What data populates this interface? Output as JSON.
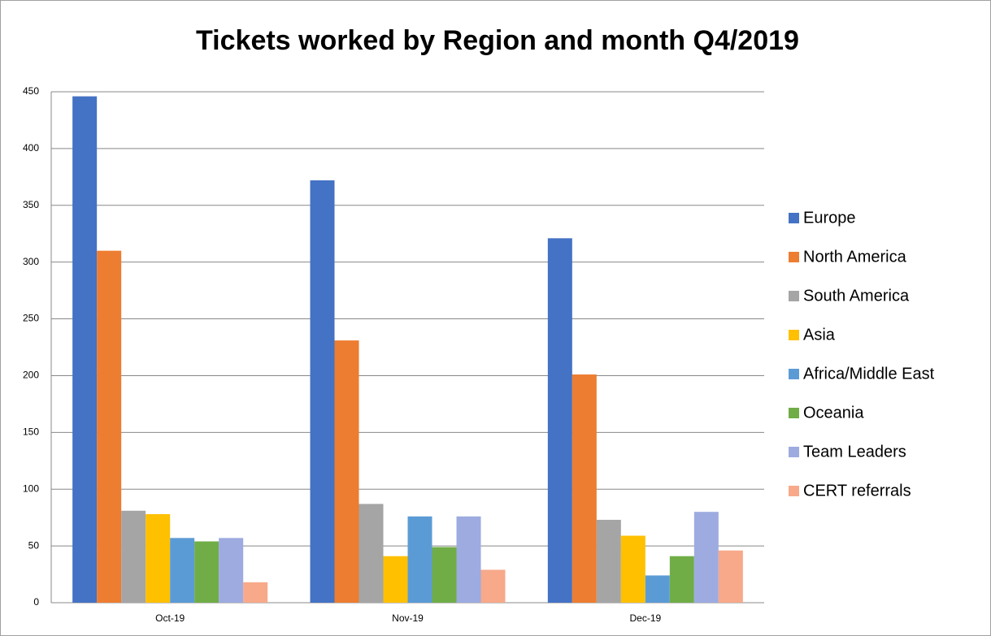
{
  "chart_data": {
    "type": "bar",
    "title": "Tickets worked by Region and month Q4/2019",
    "categories": [
      "Oct-19",
      "Nov-19",
      "Dec-19"
    ],
    "series": [
      {
        "name": "Europe",
        "color": "#4472c4",
        "values": [
          446,
          372,
          321
        ]
      },
      {
        "name": "North America",
        "color": "#ed7d31",
        "values": [
          310,
          231,
          201
        ]
      },
      {
        "name": "South America",
        "color": "#a5a5a5",
        "values": [
          81,
          87,
          73
        ]
      },
      {
        "name": "Asia",
        "color": "#ffc000",
        "values": [
          78,
          41,
          59
        ]
      },
      {
        "name": "Africa/Middle East",
        "color": "#5b9bd5",
        "values": [
          57,
          76,
          24
        ]
      },
      {
        "name": "Oceania",
        "color": "#70ad47",
        "values": [
          54,
          49,
          41
        ]
      },
      {
        "name": "Team Leaders",
        "color": "#9dabe0",
        "values": [
          57,
          76,
          80
        ]
      },
      {
        "name": "CERT referrals",
        "color": "#f7a98a",
        "values": [
          18,
          29,
          46
        ]
      }
    ],
    "ylim": [
      0,
      450
    ],
    "yticks": [
      0,
      50,
      100,
      150,
      200,
      250,
      300,
      350,
      400,
      450
    ],
    "grid": true,
    "legend": "right"
  }
}
